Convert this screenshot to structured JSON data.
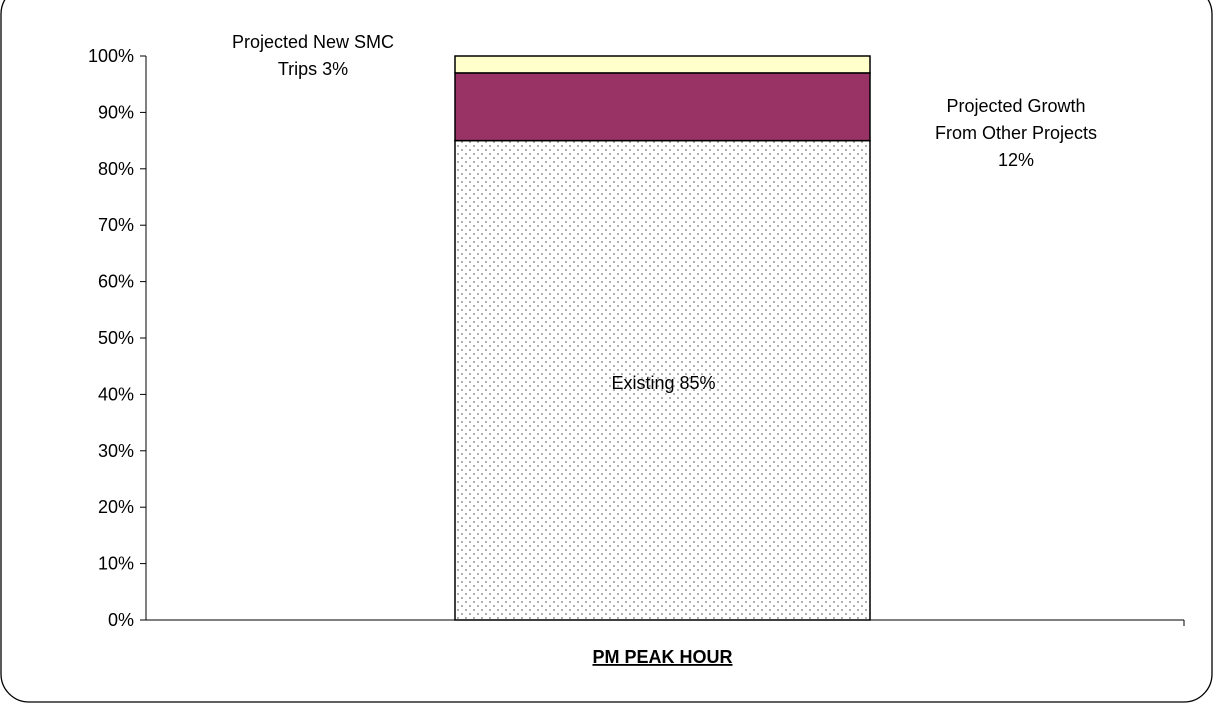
{
  "chart_data": {
    "type": "bar",
    "stacked": true,
    "categories": [
      "PM PEAK HOUR"
    ],
    "series": [
      {
        "values": [
          85
        ],
        "color": "#ffffff",
        "pattern": "dots",
        "label_lines": [
          "Existing 85%"
        ]
      },
      {
        "values": [
          12
        ],
        "color": "#993366",
        "label_lines": [
          "Projected Growth",
          "From Other Projects",
          "12%"
        ]
      },
      {
        "values": [
          3
        ],
        "color": "#ffffcc",
        "label_lines": [
          "Projected New SMC",
          "Trips 3%"
        ]
      }
    ],
    "yticks": [
      "0%",
      "10%",
      "20%",
      "30%",
      "40%",
      "50%",
      "60%",
      "70%",
      "80%",
      "90%",
      "100%"
    ],
    "ylim": [
      0,
      100
    ],
    "grid": false,
    "legend": "none"
  }
}
